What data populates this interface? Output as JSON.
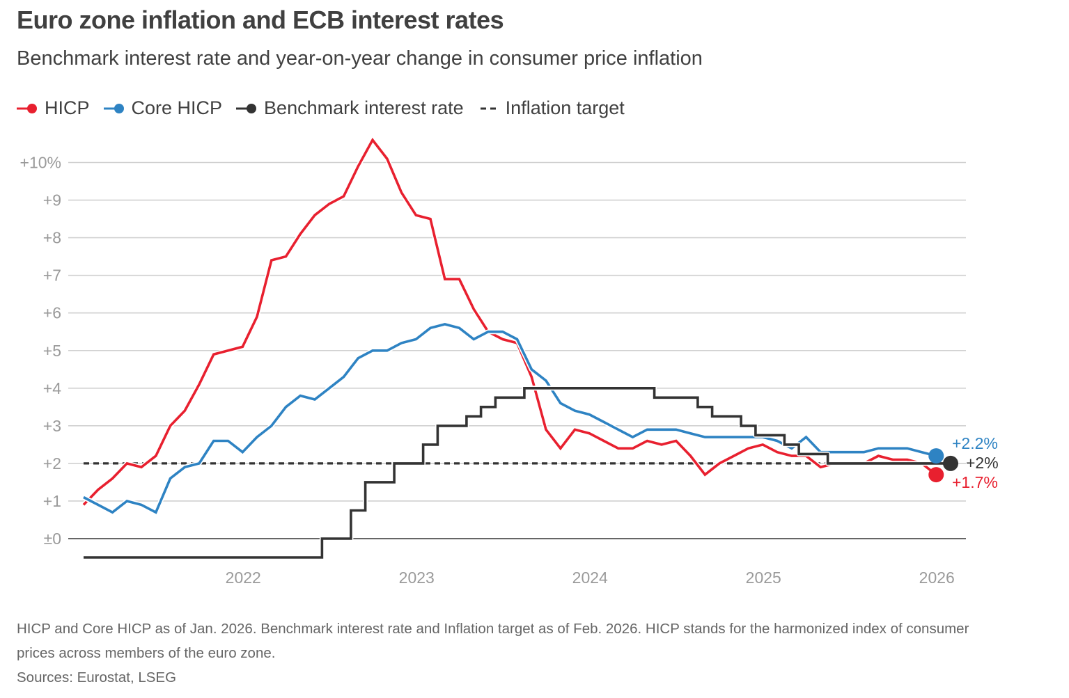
{
  "header": {
    "title": "Euro zone inflation and ECB interest rates",
    "subtitle": "Benchmark interest rate and year-on-year change in consumer price inflation"
  },
  "legend": [
    {
      "label": "HICP",
      "color": "#e8202f",
      "style": "line-dot"
    },
    {
      "label": "Core HICP",
      "color": "#2e83c3",
      "style": "line-dot"
    },
    {
      "label": "Benchmark interest rate",
      "color": "#333333",
      "style": "line-dot"
    },
    {
      "label": "Inflation target",
      "color": "#333333",
      "style": "dashed"
    }
  ],
  "footnote": "HICP and Core HICP as of Jan. 2026. Benchmark interest rate and Inflation target as of Feb. 2026. HICP stands for the harmonized index of consumer prices across members of the euro zone.",
  "sources": "Sources: Eurostat, LSEG",
  "chart_data": {
    "type": "line",
    "title": "Euro zone inflation and ECB interest rates",
    "subtitle": "Benchmark interest rate and year-on-year change in consumer price inflation",
    "xlabel": "",
    "ylabel": "",
    "x_start": "2021-02",
    "x_unit": "month",
    "x_ticks": [
      {
        "label": "2022",
        "month_index": 11
      },
      {
        "label": "2023",
        "month_index": 23
      },
      {
        "label": "2024",
        "month_index": 35
      },
      {
        "label": "2025",
        "month_index": 47
      },
      {
        "label": "2026",
        "month_index": 59
      }
    ],
    "y_ticks": [
      {
        "value": 0,
        "label": "±0"
      },
      {
        "value": 1,
        "label": "+1"
      },
      {
        "value": 2,
        "label": "+2"
      },
      {
        "value": 3,
        "label": "+3"
      },
      {
        "value": 4,
        "label": "+4"
      },
      {
        "value": 5,
        "label": "+5"
      },
      {
        "value": 6,
        "label": "+6"
      },
      {
        "value": 7,
        "label": "+7"
      },
      {
        "value": 8,
        "label": "+8"
      },
      {
        "value": 9,
        "label": "+9"
      },
      {
        "value": 10,
        "label": "+10%"
      }
    ],
    "ylim": [
      -0.5,
      10.6
    ],
    "grid": true,
    "legend_position": "top-left",
    "series": [
      {
        "name": "HICP",
        "color": "#e8202f",
        "step": false,
        "end_label": "+1.7%",
        "values": [
          0.9,
          1.3,
          1.6,
          2.0,
          1.9,
          2.2,
          3.0,
          3.4,
          4.1,
          4.9,
          5.0,
          5.1,
          5.9,
          7.4,
          7.5,
          8.1,
          8.6,
          8.9,
          9.1,
          9.9,
          10.6,
          10.1,
          9.2,
          8.6,
          8.5,
          6.9,
          6.9,
          6.1,
          5.5,
          5.3,
          5.2,
          4.3,
          2.9,
          2.4,
          2.9,
          2.8,
          2.6,
          2.4,
          2.4,
          2.6,
          2.5,
          2.6,
          2.2,
          1.7,
          2.0,
          2.2,
          2.4,
          2.5,
          2.3,
          2.2,
          2.2,
          1.9,
          2.0,
          2.0,
          2.0,
          2.2,
          2.1,
          2.1,
          2.0,
          1.7
        ]
      },
      {
        "name": "Core HICP",
        "color": "#2e83c3",
        "step": false,
        "end_label": "+2.2%",
        "values": [
          1.1,
          0.9,
          0.7,
          1.0,
          0.9,
          0.7,
          1.6,
          1.9,
          2.0,
          2.6,
          2.6,
          2.3,
          2.7,
          3.0,
          3.5,
          3.8,
          3.7,
          4.0,
          4.3,
          4.8,
          5.0,
          5.0,
          5.2,
          5.3,
          5.6,
          5.7,
          5.6,
          5.3,
          5.5,
          5.5,
          5.3,
          4.5,
          4.2,
          3.6,
          3.4,
          3.3,
          3.1,
          2.9,
          2.7,
          2.9,
          2.9,
          2.9,
          2.8,
          2.7,
          2.7,
          2.7,
          2.7,
          2.7,
          2.6,
          2.4,
          2.7,
          2.3,
          2.3,
          2.3,
          2.3,
          2.4,
          2.4,
          2.4,
          2.3,
          2.2
        ]
      },
      {
        "name": "Benchmark interest rate",
        "color": "#333333",
        "step": true,
        "end_label": "+2%",
        "values": [
          -0.5,
          -0.5,
          -0.5,
          -0.5,
          -0.5,
          -0.5,
          -0.5,
          -0.5,
          -0.5,
          -0.5,
          -0.5,
          -0.5,
          -0.5,
          -0.5,
          -0.5,
          -0.5,
          -0.5,
          0,
          0,
          0.75,
          1.5,
          1.5,
          2.0,
          2.0,
          2.5,
          3.0,
          3.0,
          3.25,
          3.5,
          3.75,
          3.75,
          4.0,
          4.0,
          4.0,
          4.0,
          4.0,
          4.0,
          4.0,
          4.0,
          4.0,
          3.75,
          3.75,
          3.75,
          3.5,
          3.25,
          3.25,
          3.0,
          2.75,
          2.75,
          2.5,
          2.25,
          2.25,
          2.0,
          2.0,
          2.0,
          2.0,
          2.0,
          2.0,
          2.0,
          2.0,
          2.0
        ]
      },
      {
        "name": "Inflation target",
        "color": "#333333",
        "dashed": true,
        "value": 2.0,
        "x_range_month_index": [
          0,
          60
        ]
      }
    ]
  }
}
